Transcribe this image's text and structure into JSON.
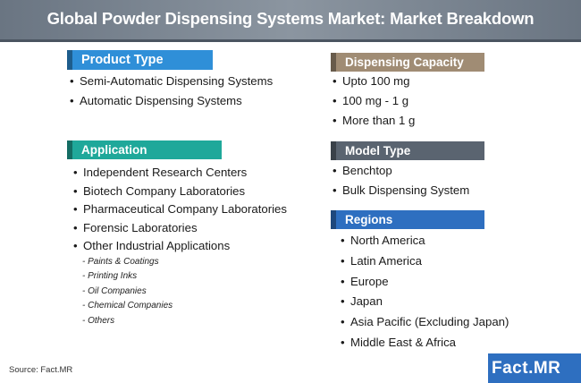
{
  "header": {
    "title": "Global Powder Dispensing Systems Market: Market Breakdown"
  },
  "product_type": {
    "title": "Product Type",
    "items": [
      "Semi-Automatic Dispensing Systems",
      "Automatic Dispensing Systems"
    ]
  },
  "application": {
    "title": "Application",
    "items": [
      "Independent Research Centers",
      "Biotech Company Laboratories",
      "Pharmaceutical Company Laboratories",
      "Forensic Laboratories",
      "Other Industrial Applications"
    ],
    "subitems": [
      "- Paints & Coatings",
      "- Printing Inks",
      "- Oil Companies",
      "- Chemical Companies",
      "- Others"
    ]
  },
  "dispensing_capacity": {
    "title": "Dispensing Capacity",
    "items": [
      "Upto 100 mg",
      "100 mg - 1 g",
      "More than 1 g"
    ]
  },
  "model_type": {
    "title": "Model Type",
    "items": [
      "Benchtop",
      "Bulk Dispensing System"
    ]
  },
  "regions": {
    "title": "Regions",
    "items": [
      "North America",
      "Latin America",
      "Europe",
      "Japan",
      "Asia Pacific (Excluding Japan)",
      "Middle East & Africa"
    ]
  },
  "footer": {
    "source": "Source: Fact.MR",
    "logo_text": "Fact.MR"
  },
  "colors": {
    "product_type": "#2f8fd8",
    "application": "#1fa89a",
    "dispensing_capacity": "#a08c74",
    "model_type": "#5a6470",
    "regions": "#2e6fc0",
    "header": "#7a8591"
  }
}
